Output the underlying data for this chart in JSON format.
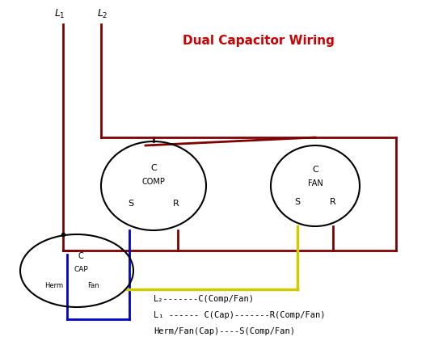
{
  "title": "Dual Capacitor Wiring",
  "title_color": "#cc0000",
  "background_color": "#ffffff",
  "figsize": [
    5.32,
    4.43
  ],
  "dpi": 100,
  "dark_red": "#800000",
  "blue": "#0000cc",
  "yellow": "#cccc00",
  "black": "#000000",
  "legend_lines": [
    "L₂-------C(Comp/Fan)",
    "L₁ ------ C(Cap)-------R(Comp/Fan)",
    "Herm/Fan(Cap)----S(Comp/Fan)"
  ]
}
